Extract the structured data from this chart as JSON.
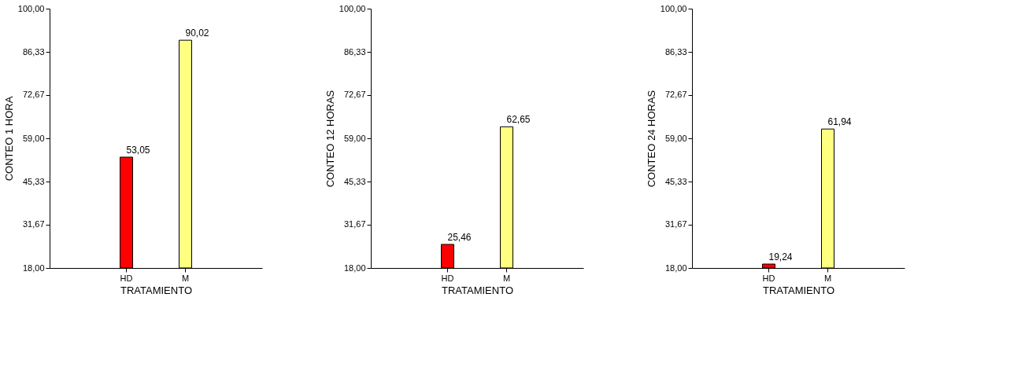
{
  "chart_data": [
    {
      "type": "bar",
      "ylabel": "CONTEO 1 HORA",
      "xlabel": "TRATAMIENTO",
      "categories": [
        "HD",
        "M"
      ],
      "values": [
        53.05,
        90.02
      ],
      "colors": [
        "#ff0000",
        "#ffff80"
      ],
      "value_labels": [
        "53,05",
        "90,02"
      ],
      "ylim": [
        18,
        100
      ],
      "yticks": [
        {
          "value": 18,
          "label": "18,00"
        },
        {
          "value": 31.67,
          "label": "31,67"
        },
        {
          "value": 45.33,
          "label": "45,33"
        },
        {
          "value": 59,
          "label": "59,00"
        },
        {
          "value": 72.67,
          "label": "72,67"
        },
        {
          "value": 86.33,
          "label": "86,33"
        },
        {
          "value": 100,
          "label": "100,00"
        }
      ],
      "grid": false
    },
    {
      "type": "bar",
      "ylabel": "CONTEO 12 HORAS",
      "xlabel": "TRATAMIENTO",
      "categories": [
        "HD",
        "M"
      ],
      "values": [
        25.46,
        62.65
      ],
      "colors": [
        "#ff0000",
        "#ffff80"
      ],
      "value_labels": [
        "25,46",
        "62,65"
      ],
      "ylim": [
        18,
        100
      ],
      "yticks": [
        {
          "value": 18,
          "label": "18,00"
        },
        {
          "value": 31.67,
          "label": "31,67"
        },
        {
          "value": 45.33,
          "label": "45,33"
        },
        {
          "value": 59,
          "label": "59,00"
        },
        {
          "value": 72.67,
          "label": "72,67"
        },
        {
          "value": 86.33,
          "label": "86,33"
        },
        {
          "value": 100,
          "label": "100,00"
        }
      ],
      "grid": false
    },
    {
      "type": "bar",
      "ylabel": "CONTEO 24 HORAS",
      "xlabel": "TRATAMIENTO",
      "categories": [
        "HD",
        "M"
      ],
      "values": [
        19.24,
        61.94
      ],
      "colors": [
        "#ff0000",
        "#ffff80"
      ],
      "value_labels": [
        "19,24",
        "61,94"
      ],
      "ylim": [
        18,
        100
      ],
      "yticks": [
        {
          "value": 18,
          "label": "18,00"
        },
        {
          "value": 31.67,
          "label": "31,67"
        },
        {
          "value": 45.33,
          "label": "45,33"
        },
        {
          "value": 59,
          "label": "59,00"
        },
        {
          "value": 72.67,
          "label": "72,67"
        },
        {
          "value": 86.33,
          "label": "86,33"
        },
        {
          "value": 100,
          "label": "100,00"
        }
      ],
      "grid": false
    }
  ]
}
